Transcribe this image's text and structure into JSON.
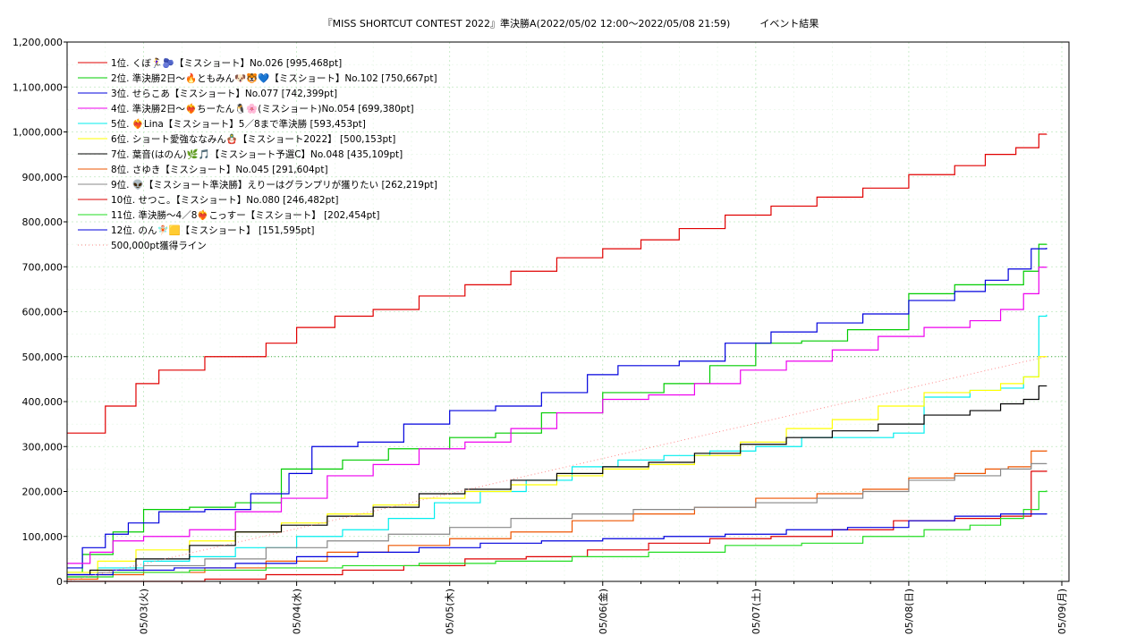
{
  "chart_data": {
    "type": "line",
    "title": "『MISS SHORTCUT CONTEST 2022』準決勝A(2022/05/02 12:00～2022/05/08 21:59)　　　イベント結果",
    "xlabel": "",
    "ylabel": "",
    "x_range": [
      0,
      6.4
    ],
    "x_ticks": [
      {
        "x": 0.5,
        "label": "05/03(火)"
      },
      {
        "x": 1.5,
        "label": "05/04(水)"
      },
      {
        "x": 2.5,
        "label": "05/05(木)"
      },
      {
        "x": 3.5,
        "label": "05/06(金)"
      },
      {
        "x": 4.5,
        "label": "05/07(土)"
      },
      {
        "x": 5.5,
        "label": "05/08(日)"
      },
      {
        "x": 6.5,
        "label": "05/09(月)"
      }
    ],
    "ylim": [
      0,
      1200000
    ],
    "y_ticks": [
      {
        "y": 0,
        "label": "0"
      },
      {
        "y": 100000,
        "label": "100,000"
      },
      {
        "y": 200000,
        "label": "200,000"
      },
      {
        "y": 300000,
        "label": "300,000"
      },
      {
        "y": 400000,
        "label": "400,000"
      },
      {
        "y": 500000,
        "label": "500,000"
      },
      {
        "y": 600000,
        "label": "600,000"
      },
      {
        "y": 700000,
        "label": "700,000"
      },
      {
        "y": 800000,
        "label": "800,000"
      },
      {
        "y": 900000,
        "label": "900,000"
      },
      {
        "y": 1000000,
        "label": "1,000,000"
      },
      {
        "y": 1100000,
        "label": "1,100,000"
      },
      {
        "y": 1200000,
        "label": "1,200,000"
      }
    ],
    "grid": true,
    "legend_position": "top-left",
    "series": [
      {
        "name": "1位. くぼ🏃‍♀️🫐【ミスショート】No.026 [995,468pt]",
        "color": "#e00000",
        "x": [
          0,
          0.12,
          0.25,
          0.45,
          0.6,
          0.9,
          1.3,
          1.5,
          1.75,
          2.0,
          2.3,
          2.6,
          2.9,
          3.2,
          3.5,
          3.75,
          4.0,
          4.3,
          4.6,
          4.9,
          5.2,
          5.5,
          5.8,
          6.0,
          6.2,
          6.35,
          6.4
        ],
        "y": [
          330000,
          330000,
          390000,
          440000,
          470000,
          500000,
          530000,
          565000,
          590000,
          605000,
          635000,
          660000,
          690000,
          720000,
          740000,
          760000,
          785000,
          815000,
          835000,
          855000,
          875000,
          905000,
          925000,
          950000,
          965000,
          995000,
          995468
        ]
      },
      {
        "name": "2位. 準決勝2日〜🔥ともみん🐶🐯💙【ミスショート】No.102 [750,667pt]",
        "color": "#00cc00",
        "x": [
          0,
          0.1,
          0.3,
          0.5,
          0.8,
          1.1,
          1.4,
          1.8,
          2.1,
          2.5,
          2.8,
          3.1,
          3.5,
          3.9,
          4.2,
          4.5,
          4.8,
          5.1,
          5.5,
          5.8,
          6.1,
          6.25,
          6.35,
          6.4
        ],
        "y": [
          20000,
          60000,
          110000,
          160000,
          165000,
          175000,
          250000,
          270000,
          295000,
          320000,
          330000,
          375000,
          420000,
          440000,
          480000,
          530000,
          535000,
          560000,
          640000,
          660000,
          660000,
          690000,
          750000,
          750667
        ]
      },
      {
        "name": "3位. せらこあ【ミスショート】No.077 [742,399pt]",
        "color": "#0000dd",
        "x": [
          0,
          0.1,
          0.25,
          0.4,
          0.6,
          0.9,
          1.2,
          1.45,
          1.6,
          1.9,
          2.2,
          2.5,
          2.8,
          3.1,
          3.4,
          3.6,
          4.0,
          4.3,
          4.6,
          4.9,
          5.2,
          5.5,
          5.8,
          6.0,
          6.15,
          6.3,
          6.4
        ],
        "y": [
          30000,
          75000,
          105000,
          130000,
          155000,
          160000,
          195000,
          240000,
          300000,
          310000,
          350000,
          380000,
          390000,
          420000,
          460000,
          480000,
          490000,
          530000,
          555000,
          575000,
          595000,
          625000,
          645000,
          670000,
          695000,
          740000,
          742399
        ]
      },
      {
        "name": "4位. 準決勝2日〜❤️‍🔥ちーたん🐧🌸(ミスショート)No.054 [699,380pt]",
        "color": "#ee00ee",
        "x": [
          0,
          0.15,
          0.3,
          0.5,
          0.8,
          1.1,
          1.4,
          1.7,
          2.0,
          2.3,
          2.6,
          2.9,
          3.2,
          3.5,
          3.8,
          4.1,
          4.4,
          4.7,
          5.0,
          5.3,
          5.6,
          5.9,
          6.1,
          6.25,
          6.35,
          6.4
        ],
        "y": [
          40000,
          65000,
          90000,
          100000,
          115000,
          155000,
          185000,
          235000,
          260000,
          295000,
          310000,
          340000,
          375000,
          405000,
          415000,
          440000,
          470000,
          490000,
          515000,
          545000,
          565000,
          580000,
          605000,
          640000,
          699000,
          699380
        ]
      },
      {
        "name": "5位. ❤️‍🔥Lina【ミスショート】5／8まで準決勝 [593,453pt]",
        "color": "#00eeee",
        "x": [
          0,
          0.2,
          0.5,
          0.8,
          1.1,
          1.5,
          1.8,
          2.1,
          2.4,
          2.7,
          3.0,
          3.3,
          3.6,
          3.9,
          4.2,
          4.5,
          4.8,
          5.1,
          5.4,
          5.6,
          5.9,
          6.1,
          6.25,
          6.35,
          6.4
        ],
        "y": [
          10000,
          30000,
          45000,
          55000,
          75000,
          100000,
          115000,
          140000,
          175000,
          200000,
          225000,
          255000,
          270000,
          280000,
          290000,
          300000,
          320000,
          320000,
          330000,
          410000,
          425000,
          430000,
          455000,
          590000,
          593453
        ]
      },
      {
        "name": "6位. ショート愛強ななみん🪆【ミスショート2022】 [500,153pt]",
        "color": "#ffff00",
        "x": [
          0,
          0.2,
          0.45,
          0.8,
          1.1,
          1.4,
          1.7,
          2.0,
          2.3,
          2.6,
          2.9,
          3.2,
          3.5,
          3.8,
          4.1,
          4.4,
          4.7,
          5.0,
          5.3,
          5.6,
          5.9,
          6.1,
          6.25,
          6.35,
          6.4
        ],
        "y": [
          20000,
          45000,
          70000,
          90000,
          110000,
          130000,
          150000,
          170000,
          185000,
          200000,
          215000,
          235000,
          250000,
          260000,
          280000,
          310000,
          340000,
          360000,
          390000,
          420000,
          425000,
          440000,
          455000,
          500000,
          500153
        ]
      },
      {
        "name": "7位. 葉音(はのん)🌿🎵【ミスショート予選C】No.048 [435,109pt]",
        "color": "#000000",
        "x": [
          0,
          0.15,
          0.45,
          0.8,
          1.1,
          1.4,
          1.7,
          2.0,
          2.3,
          2.6,
          2.9,
          3.2,
          3.5,
          3.8,
          4.1,
          4.4,
          4.7,
          5.0,
          5.3,
          5.6,
          5.9,
          6.1,
          6.25,
          6.35,
          6.4
        ],
        "y": [
          15000,
          25000,
          50000,
          80000,
          110000,
          125000,
          145000,
          165000,
          195000,
          205000,
          225000,
          240000,
          255000,
          265000,
          285000,
          305000,
          320000,
          335000,
          350000,
          370000,
          380000,
          395000,
          405000,
          435000,
          435109
        ]
      },
      {
        "name": "8位. さゆき【ミスショート】No.045 [291,604pt]",
        "color": "#ee5500",
        "x": [
          0,
          0.2,
          0.5,
          0.9,
          1.3,
          1.7,
          2.1,
          2.5,
          2.9,
          3.3,
          3.7,
          4.1,
          4.5,
          4.9,
          5.2,
          5.5,
          5.8,
          6.0,
          6.15,
          6.3,
          6.4
        ],
        "y": [
          5000,
          15000,
          20000,
          30000,
          45000,
          65000,
          80000,
          95000,
          110000,
          135000,
          150000,
          165000,
          185000,
          195000,
          205000,
          230000,
          240000,
          250000,
          255000,
          290000,
          291604
        ]
      },
      {
        "name": "9位. 👽【ミスショート準決勝】えりーはグランプリが獲りたい [262,219pt]",
        "color": "#888888",
        "x": [
          0,
          0.2,
          0.5,
          0.9,
          1.3,
          1.7,
          2.1,
          2.5,
          2.9,
          3.3,
          3.7,
          4.1,
          4.5,
          4.9,
          5.2,
          5.5,
          5.8,
          6.1,
          6.3,
          6.4
        ],
        "y": [
          10000,
          20000,
          35000,
          50000,
          75000,
          90000,
          105000,
          120000,
          140000,
          150000,
          160000,
          165000,
          175000,
          185000,
          200000,
          225000,
          235000,
          250000,
          262000,
          262219
        ]
      },
      {
        "name": "10位. せつこ。【ミスショート】No.080 [246,482pt]",
        "color": "#dd0000",
        "x": [
          0,
          0.4,
          0.9,
          1.3,
          1.8,
          2.2,
          2.6,
          3.0,
          3.4,
          3.8,
          4.2,
          4.6,
          5.0,
          5.4,
          5.8,
          6.1,
          6.3,
          6.4
        ],
        "y": [
          0,
          0,
          5000,
          15000,
          25000,
          35000,
          50000,
          55000,
          70000,
          85000,
          95000,
          100000,
          115000,
          135000,
          140000,
          145000,
          245000,
          246482
        ]
      },
      {
        "name": "11位. 準決勝〜4／8❤️‍🔥こっすー【ミスショート】 [202,454pt]",
        "color": "#22dd22",
        "x": [
          0,
          0.3,
          0.8,
          1.3,
          1.8,
          2.3,
          2.8,
          3.3,
          3.8,
          4.3,
          4.8,
          5.2,
          5.6,
          5.9,
          6.1,
          6.25,
          6.35,
          6.4
        ],
        "y": [
          10000,
          20000,
          25000,
          30000,
          35000,
          40000,
          45000,
          55000,
          65000,
          80000,
          85000,
          100000,
          115000,
          125000,
          140000,
          160000,
          200000,
          202454
        ]
      },
      {
        "name": "12位. のん🧚🏻🟨【ミスショート】 [151,595pt]",
        "color": "#0000dd",
        "x": [
          0,
          0.3,
          0.7,
          1.1,
          1.5,
          1.9,
          2.3,
          2.7,
          3.1,
          3.5,
          3.9,
          4.3,
          4.7,
          5.1,
          5.5,
          5.8,
          6.1,
          6.4
        ],
        "y": [
          15000,
          25000,
          30000,
          40000,
          55000,
          65000,
          75000,
          85000,
          90000,
          95000,
          100000,
          105000,
          115000,
          120000,
          135000,
          145000,
          150000,
          151595
        ]
      },
      {
        "name": "500,000pt獲得ライン",
        "color": "#ff8888",
        "dotted": true,
        "x": [
          0,
          6.4
        ],
        "y": [
          0,
          500000
        ]
      }
    ],
    "reference_line": {
      "y": 500000,
      "color": "#44aa44"
    }
  }
}
